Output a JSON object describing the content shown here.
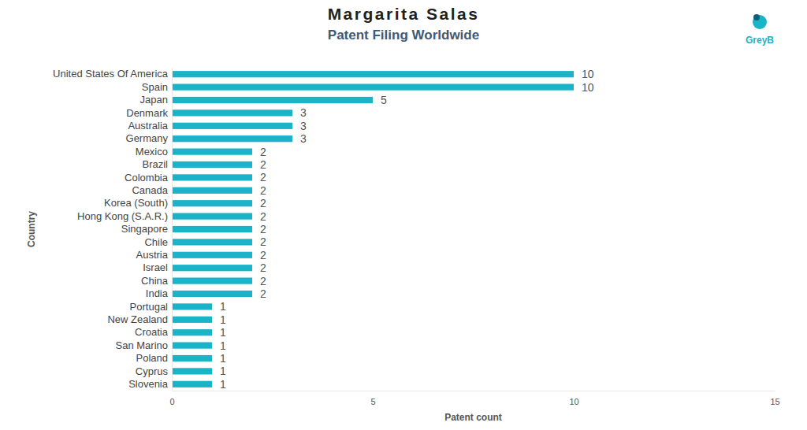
{
  "chart_data": {
    "type": "bar",
    "orientation": "horizontal",
    "title": "Margarita Salas",
    "subtitle": "Patent Filing Worldwide",
    "x_label": "Patent count",
    "y_label": "Country",
    "annotations": [
      "GreyB"
    ],
    "categories": [
      "United States Of America",
      "Spain",
      "Japan",
      "Denmark",
      "Australia",
      "Germany",
      "Mexico",
      "Brazil",
      "Colombia",
      "Canada",
      "Korea (South)",
      "Hong Kong (S.A.R.)",
      "Singapore",
      "Chile",
      "Austria",
      "Israel",
      "China",
      "India",
      "Portugal",
      "New Zealand",
      "Croatia",
      "San Marino",
      "Poland",
      "Cyprus",
      "Slovenia"
    ],
    "values": [
      10,
      10,
      5,
      3,
      3,
      3,
      2,
      2,
      2,
      2,
      2,
      2,
      2,
      2,
      2,
      2,
      2,
      2,
      1,
      1,
      1,
      1,
      1,
      1,
      1
    ],
    "color": "#1ab3c8",
    "xlim": [
      0,
      15
    ],
    "xticks": [
      0,
      5,
      10,
      15
    ],
    "grid": false,
    "data_labels": true
  }
}
